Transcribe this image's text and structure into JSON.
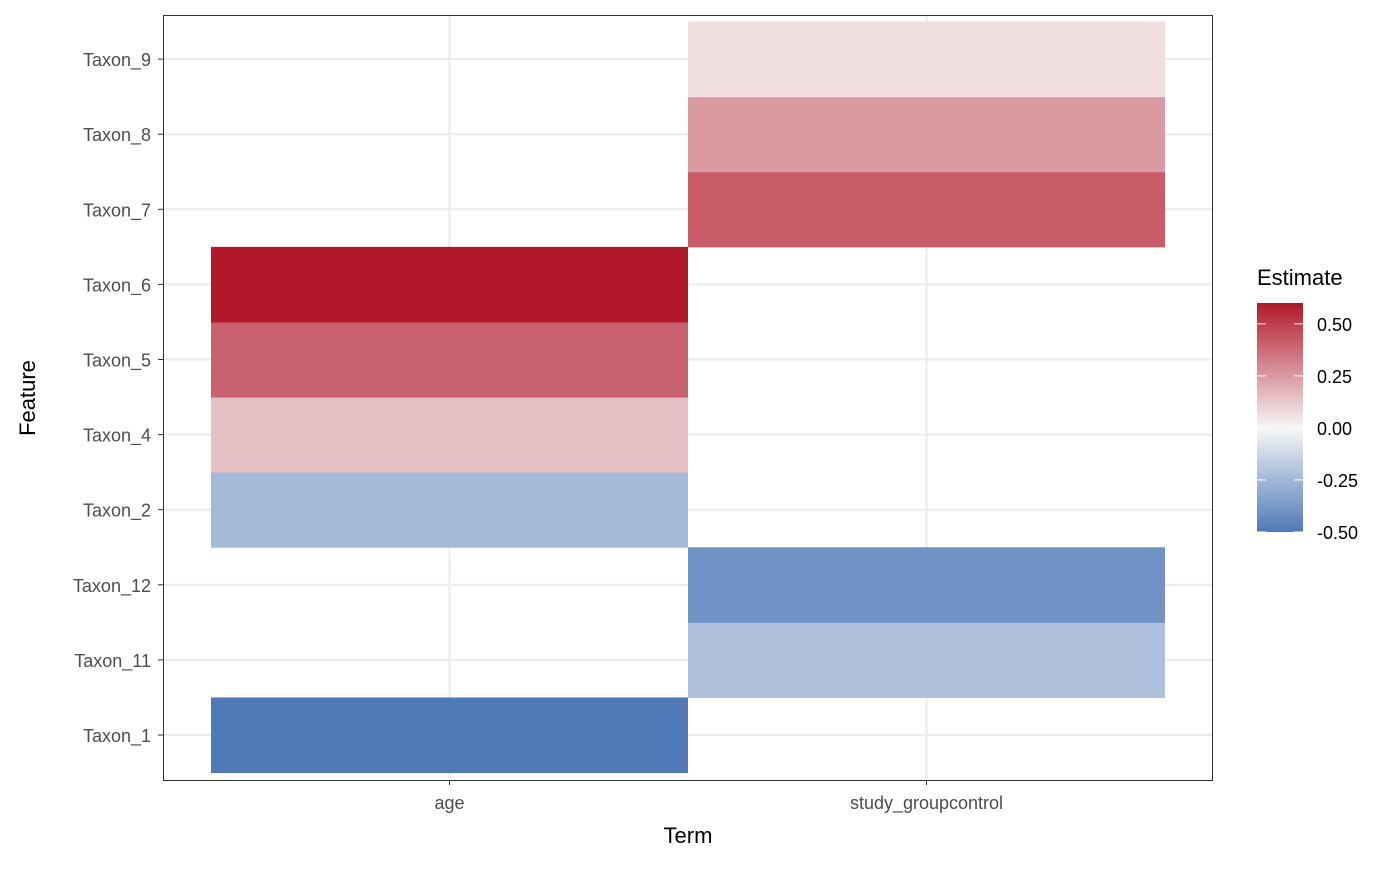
{
  "chart_data": {
    "type": "heatmap",
    "title": "",
    "xlabel": "Term",
    "ylabel": "Feature",
    "x_categories": [
      "age",
      "study_groupcontrol"
    ],
    "y_categories": [
      "Taxon_1",
      "Taxon_11",
      "Taxon_12",
      "Taxon_2",
      "Taxon_4",
      "Taxon_5",
      "Taxon_6",
      "Taxon_7",
      "Taxon_8",
      "Taxon_9"
    ],
    "cells": [
      {
        "x": "age",
        "y": "Taxon_1",
        "value": -0.5
      },
      {
        "x": "age",
        "y": "Taxon_2",
        "value": -0.25
      },
      {
        "x": "age",
        "y": "Taxon_4",
        "value": 0.15
      },
      {
        "x": "age",
        "y": "Taxon_5",
        "value": 0.4
      },
      {
        "x": "age",
        "y": "Taxon_6",
        "value": 0.6
      },
      {
        "x": "study_groupcontrol",
        "y": "Taxon_11",
        "value": -0.22
      },
      {
        "x": "study_groupcontrol",
        "y": "Taxon_12",
        "value": -0.4
      },
      {
        "x": "study_groupcontrol",
        "y": "Taxon_7",
        "value": 0.42
      },
      {
        "x": "study_groupcontrol",
        "y": "Taxon_8",
        "value": 0.25
      },
      {
        "x": "study_groupcontrol",
        "y": "Taxon_9",
        "value": 0.07
      }
    ],
    "legend": {
      "title": "Estimate",
      "position": "right",
      "limits": [
        -0.5,
        0.6
      ],
      "ticks": [
        0.5,
        0.25,
        0.0,
        -0.25,
        -0.5
      ],
      "tick_labels": [
        "0.50",
        "0.25",
        "0.00",
        "-0.25",
        "-0.50"
      ],
      "colors": {
        "low": "#5079B7",
        "mid": "#F7F7F7",
        "high": "#B2182B"
      }
    },
    "grid": true,
    "colors": {
      "panel_border": "#333333",
      "grid": "#EBEBEB"
    }
  }
}
